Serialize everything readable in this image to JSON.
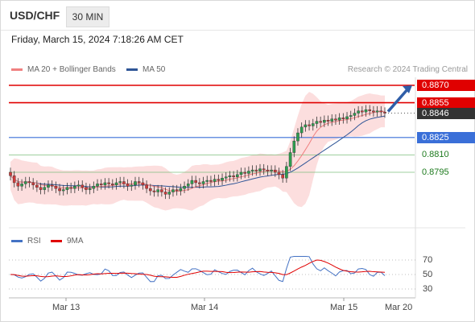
{
  "header": {
    "symbol": "USD/CHF",
    "timeframe": "30 MIN"
  },
  "datetime": "Friday, March 15, 2024 7:18:26 AM CET",
  "legend": {
    "ma20": {
      "label": "MA 20 + Bollinger Bands",
      "color": "#f08080"
    },
    "ma50": {
      "label": "MA 50",
      "color": "#2f5597"
    }
  },
  "credit": "Research © 2024 Trading Central",
  "levels": [
    {
      "value": "0.8870",
      "kind": "resistance",
      "color": "#e00000"
    },
    {
      "value": "0.8855",
      "kind": "resistance",
      "color": "#e00000"
    },
    {
      "value": "0.8846",
      "kind": "last",
      "color": "#333333"
    },
    {
      "value": "0.8825",
      "kind": "pivot",
      "color": "#3a6fd8"
    },
    {
      "value": "0.8810",
      "kind": "support",
      "color": "#2e8b57"
    },
    {
      "value": "0.8795",
      "kind": "support",
      "color": "#2e8b57"
    }
  ],
  "rsi_legend": {
    "rsi": {
      "label": "RSI",
      "color": "#4472c4"
    },
    "ma9": {
      "label": "9MA",
      "color": "#e00000"
    }
  },
  "rsi_axis": [
    "70",
    "50",
    "30"
  ],
  "x_axis": [
    "Mar 13",
    "Mar 14",
    "Mar 15",
    "Mar 20"
  ],
  "chart_data": {
    "type": "candlestick",
    "pair": "USD/CHF",
    "timeframe": "30 MIN",
    "price_levels": [
      0.887,
      0.8855,
      0.8846,
      0.8825,
      0.881,
      0.8795
    ],
    "y_range_approx": [
      0.8762,
      0.8875
    ],
    "last_price": 0.8846,
    "x_labels": [
      "Mar 13",
      "Mar 14",
      "Mar 15",
      "Mar 20"
    ],
    "rsi_levels": [
      70,
      50,
      30
    ],
    "closes_approx": [
      0.8792,
      0.8786,
      0.8783,
      0.8785,
      0.8787,
      0.8786,
      0.8784,
      0.8782,
      0.878,
      0.8782,
      0.8784,
      0.8783,
      0.8781,
      0.8779,
      0.878,
      0.8782,
      0.8781,
      0.8783,
      0.8784,
      0.8782,
      0.878,
      0.8781,
      0.8783,
      0.8785,
      0.8784,
      0.8786,
      0.8785,
      0.8784,
      0.8786,
      0.8787,
      0.8785,
      0.8783,
      0.8784,
      0.8787,
      0.8786,
      0.8784,
      0.8781,
      0.8779,
      0.8778,
      0.878,
      0.8778,
      0.8776,
      0.8778,
      0.878,
      0.8779,
      0.8781,
      0.8783,
      0.8785,
      0.8788,
      0.8786,
      0.8785,
      0.8787,
      0.8788,
      0.8787,
      0.8789,
      0.8788,
      0.879,
      0.8791,
      0.8792,
      0.8791,
      0.8793,
      0.8795,
      0.8794,
      0.8796,
      0.8797,
      0.8796,
      0.8798,
      0.8797,
      0.8796,
      0.8797,
      0.8795,
      0.8793,
      0.879,
      0.88,
      0.8812,
      0.8822,
      0.8829,
      0.8834,
      0.8836,
      0.8835,
      0.8837,
      0.8839,
      0.8838,
      0.884,
      0.8839,
      0.8841,
      0.884,
      0.8842,
      0.8841,
      0.8843,
      0.8844,
      0.8846,
      0.8848,
      0.8847,
      0.8849,
      0.8848,
      0.8847,
      0.8848,
      0.8847,
      0.8846
    ],
    "projection": {
      "from": 0.8846,
      "to": 0.887
    }
  }
}
